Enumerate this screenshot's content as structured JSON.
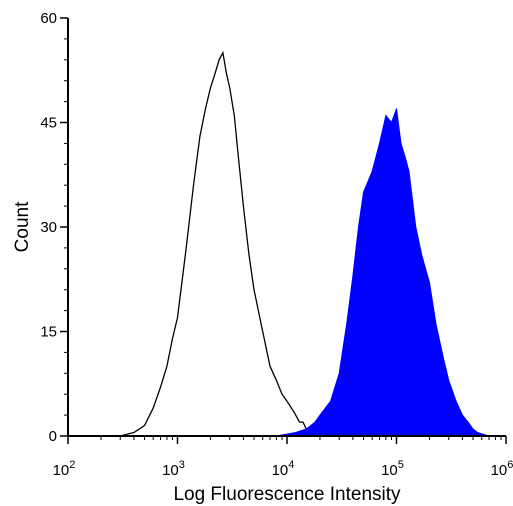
{
  "chart_data": {
    "type": "area",
    "title": "",
    "xlabel": "Log Fluorescence Intensity",
    "ylabel": "Count",
    "x_scale": "log",
    "xlim": [
      100,
      1000000
    ],
    "ylim": [
      0,
      60
    ],
    "x_ticks": [
      {
        "value": 100,
        "base": "10",
        "exp": "2"
      },
      {
        "value": 1000,
        "base": "10",
        "exp": "3"
      },
      {
        "value": 10000,
        "base": "10",
        "exp": "4"
      },
      {
        "value": 100000,
        "base": "10",
        "exp": "5"
      },
      {
        "value": 1000000,
        "base": "10",
        "exp": "6"
      }
    ],
    "y_ticks": [
      {
        "value": 0,
        "label": "0"
      },
      {
        "value": 15,
        "label": "15"
      },
      {
        "value": 30,
        "label": "30"
      },
      {
        "value": 45,
        "label": "45"
      },
      {
        "value": 60,
        "label": "60"
      }
    ],
    "grid": false,
    "legend": "none",
    "series": [
      {
        "style": "outline",
        "color": "#000000",
        "x": [
          300,
          400,
          500,
          600,
          700,
          800,
          900,
          1000,
          1200,
          1400,
          1600,
          1800,
          2000,
          2200,
          2400,
          2600,
          2800,
          3000,
          3300,
          3600,
          4000,
          4500,
          5000,
          6000,
          7000,
          8000,
          9000,
          10000,
          11000,
          12000,
          13000,
          14000,
          15000,
          18000,
          25000,
          40000,
          100000,
          1000000
        ],
        "y": [
          0,
          0.5,
          1.5,
          4,
          7,
          10,
          14,
          17,
          27,
          36,
          43,
          47,
          50,
          52,
          54,
          55,
          52,
          50,
          46,
          40,
          33,
          26,
          21,
          15,
          10,
          8,
          6,
          5,
          4,
          3,
          2,
          2,
          1,
          0.5,
          0.3,
          0.5,
          0.3,
          0
        ]
      },
      {
        "style": "filled",
        "color": "#0000ff",
        "x": [
          8000,
          12000,
          15000,
          18000,
          20000,
          25000,
          30000,
          35000,
          40000,
          45000,
          50000,
          60000,
          70000,
          80000,
          90000,
          100000,
          110000,
          120000,
          130000,
          150000,
          170000,
          200000,
          230000,
          270000,
          300000,
          350000,
          400000,
          450000,
          500000,
          550000,
          600000,
          700000
        ],
        "y": [
          0,
          0.5,
          1,
          2,
          3,
          5,
          9,
          16,
          23,
          30,
          35,
          38,
          42,
          46,
          45,
          47,
          42,
          40,
          38,
          30,
          26,
          22,
          16,
          11,
          8,
          5,
          3,
          2,
          1,
          0.5,
          0.3,
          0
        ]
      }
    ]
  }
}
